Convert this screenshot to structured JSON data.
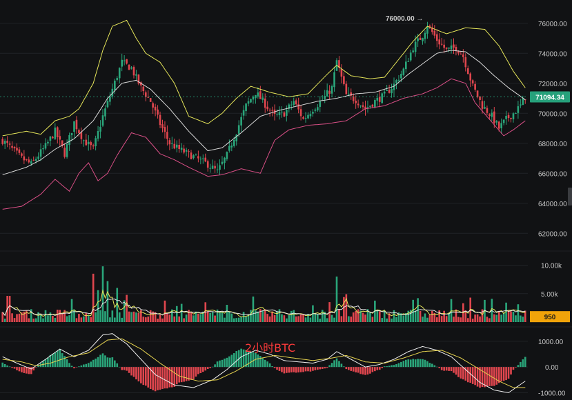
{
  "colors": {
    "up": "#2aa57a",
    "down": "#e0464e",
    "bb_upper": "#e6e65a",
    "bb_mid": "#d8d8d8",
    "bb_lower": "#d94f86",
    "vol_ma1": "#e6e65a",
    "vol_ma2": "#e7e7e7",
    "macd_dif": "#f0f0f0",
    "macd_dea": "#e6d34f",
    "price_badge": "#26a17b",
    "volume_badge": "#f0a30a"
  },
  "watermark": "2小时BTC",
  "chart_data": [
    {
      "type": "candlestick",
      "panel": "price",
      "ylim": [
        61000,
        77000
      ],
      "y_ticks": [
        62000,
        64000,
        66000,
        68000,
        70000,
        72000,
        74000,
        76000
      ],
      "y_tick_labels": [
        "62000.00",
        "64000.00",
        "66000.00",
        "68000.00",
        "70000.00",
        "72000.00",
        "74000.00",
        "76000.00"
      ],
      "current_price": 71094.34,
      "current_price_label": "71094.34",
      "high_marker": 76000,
      "high_marker_label": "76000.00 →",
      "price_path": [
        [
          0,
          68200
        ],
        [
          8,
          67000
        ],
        [
          12,
          66600
        ],
        [
          18,
          67800
        ],
        [
          22,
          68800
        ],
        [
          26,
          67300
        ],
        [
          30,
          69400
        ],
        [
          34,
          68200
        ],
        [
          38,
          67600
        ],
        [
          42,
          69800
        ],
        [
          46,
          71600
        ],
        [
          50,
          73400
        ],
        [
          54,
          73000
        ],
        [
          58,
          71700
        ],
        [
          62,
          70800
        ],
        [
          66,
          69300
        ],
        [
          70,
          68000
        ],
        [
          74,
          67600
        ],
        [
          80,
          67100
        ],
        [
          86,
          66600
        ],
        [
          90,
          66100
        ],
        [
          94,
          67200
        ],
        [
          98,
          68800
        ],
        [
          102,
          70500
        ],
        [
          106,
          71400
        ],
        [
          110,
          70600
        ],
        [
          114,
          69800
        ],
        [
          118,
          70000
        ],
        [
          122,
          70800
        ],
        [
          126,
          69600
        ],
        [
          130,
          70300
        ],
        [
          134,
          70900
        ],
        [
          138,
          71700
        ],
        [
          140,
          73500
        ],
        [
          144,
          71200
        ],
        [
          148,
          70900
        ],
        [
          152,
          70300
        ],
        [
          156,
          70800
        ],
        [
          160,
          71200
        ],
        [
          164,
          71900
        ],
        [
          168,
          72900
        ],
        [
          172,
          74400
        ],
        [
          176,
          75200
        ],
        [
          178,
          75900
        ],
        [
          182,
          74900
        ],
        [
          186,
          74200
        ],
        [
          190,
          74400
        ],
        [
          193,
          73800
        ],
        [
          197,
          71800
        ],
        [
          201,
          70500
        ],
        [
          205,
          69800
        ],
        [
          208,
          69000
        ],
        [
          211,
          69600
        ],
        [
          214,
          70000
        ],
        [
          217,
          70500
        ],
        [
          219,
          71094
        ]
      ],
      "bb_upper": [
        [
          0,
          68500
        ],
        [
          10,
          68800
        ],
        [
          16,
          68600
        ],
        [
          22,
          69500
        ],
        [
          28,
          69800
        ],
        [
          32,
          70300
        ],
        [
          38,
          72000
        ],
        [
          42,
          74200
        ],
        [
          46,
          75800
        ],
        [
          52,
          76200
        ],
        [
          56,
          75000
        ],
        [
          60,
          74000
        ],
        [
          66,
          73400
        ],
        [
          72,
          72000
        ],
        [
          78,
          69800
        ],
        [
          86,
          69300
        ],
        [
          92,
          70000
        ],
        [
          98,
          71000
        ],
        [
          104,
          71800
        ],
        [
          112,
          71400
        ],
        [
          120,
          71100
        ],
        [
          128,
          71300
        ],
        [
          136,
          72600
        ],
        [
          140,
          73200
        ],
        [
          146,
          72500
        ],
        [
          154,
          72300
        ],
        [
          160,
          72400
        ],
        [
          166,
          73600
        ],
        [
          172,
          74800
        ],
        [
          178,
          75800
        ],
        [
          186,
          75300
        ],
        [
          194,
          75700
        ],
        [
          202,
          75600
        ],
        [
          208,
          74500
        ],
        [
          214,
          72800
        ],
        [
          219,
          71700
        ]
      ],
      "bb_mid": [
        [
          0,
          65900
        ],
        [
          10,
          66400
        ],
        [
          16,
          66900
        ],
        [
          22,
          67600
        ],
        [
          30,
          68300
        ],
        [
          38,
          69500
        ],
        [
          44,
          71000
        ],
        [
          50,
          72000
        ],
        [
          56,
          72200
        ],
        [
          62,
          71600
        ],
        [
          70,
          70300
        ],
        [
          78,
          68800
        ],
        [
          86,
          67500
        ],
        [
          92,
          67700
        ],
        [
          100,
          68700
        ],
        [
          108,
          69800
        ],
        [
          116,
          70200
        ],
        [
          124,
          70500
        ],
        [
          132,
          70800
        ],
        [
          140,
          71000
        ],
        [
          148,
          71300
        ],
        [
          156,
          71400
        ],
        [
          164,
          71800
        ],
        [
          170,
          72600
        ],
        [
          176,
          73300
        ],
        [
          182,
          74000
        ],
        [
          188,
          74200
        ],
        [
          194,
          74100
        ],
        [
          200,
          73400
        ],
        [
          206,
          72500
        ],
        [
          212,
          71700
        ],
        [
          219,
          70900
        ]
      ],
      "bb_lower": [
        [
          0,
          63600
        ],
        [
          8,
          63800
        ],
        [
          16,
          64600
        ],
        [
          22,
          65600
        ],
        [
          28,
          64800
        ],
        [
          32,
          66000
        ],
        [
          36,
          66700
        ],
        [
          40,
          65500
        ],
        [
          44,
          66000
        ],
        [
          48,
          67200
        ],
        [
          54,
          68700
        ],
        [
          60,
          68400
        ],
        [
          66,
          67300
        ],
        [
          72,
          66900
        ],
        [
          78,
          66400
        ],
        [
          86,
          65800
        ],
        [
          92,
          65900
        ],
        [
          100,
          66300
        ],
        [
          108,
          66000
        ],
        [
          114,
          68200
        ],
        [
          120,
          68900
        ],
        [
          128,
          69200
        ],
        [
          136,
          69300
        ],
        [
          144,
          69500
        ],
        [
          152,
          70300
        ],
        [
          160,
          70500
        ],
        [
          168,
          71000
        ],
        [
          176,
          71300
        ],
        [
          182,
          71700
        ],
        [
          188,
          72300
        ],
        [
          194,
          72000
        ],
        [
          198,
          70700
        ],
        [
          204,
          69600
        ],
        [
          210,
          68500
        ],
        [
          214,
          68900
        ],
        [
          219,
          69500
        ]
      ]
    },
    {
      "type": "bar",
      "panel": "volume",
      "ylim": [
        0,
        12000
      ],
      "y_ticks": [
        5000,
        10000
      ],
      "y_tick_labels": [
        "5.00k",
        "10.00k"
      ],
      "current_volume": 950,
      "current_volume_label": "950",
      "spikes": [
        [
          38,
          8500
        ],
        [
          40,
          5600
        ],
        [
          42,
          9800
        ],
        [
          44,
          7200
        ],
        [
          48,
          6000
        ],
        [
          140,
          8000
        ],
        [
          144,
          4900
        ],
        [
          174,
          4200
        ],
        [
          196,
          4300
        ]
      ]
    },
    {
      "type": "histogram",
      "panel": "macd",
      "ylim": [
        -1150,
        1400
      ],
      "y_ticks": [
        -1000,
        0,
        1000
      ],
      "y_tick_labels": [
        "-1000.00",
        "0.00",
        "1000.00"
      ],
      "dif": [
        [
          0,
          400
        ],
        [
          6,
          150
        ],
        [
          12,
          -80
        ],
        [
          18,
          300
        ],
        [
          24,
          700
        ],
        [
          30,
          400
        ],
        [
          36,
          650
        ],
        [
          42,
          1250
        ],
        [
          46,
          1300
        ],
        [
          52,
          900
        ],
        [
          58,
          300
        ],
        [
          64,
          -300
        ],
        [
          72,
          -700
        ],
        [
          80,
          -800
        ],
        [
          88,
          -500
        ],
        [
          94,
          -100
        ],
        [
          100,
          400
        ],
        [
          106,
          650
        ],
        [
          112,
          500
        ],
        [
          118,
          250
        ],
        [
          124,
          200
        ],
        [
          130,
          150
        ],
        [
          136,
          300
        ],
        [
          140,
          600
        ],
        [
          146,
          300
        ],
        [
          152,
          0
        ],
        [
          158,
          100
        ],
        [
          164,
          300
        ],
        [
          170,
          600
        ],
        [
          176,
          800
        ],
        [
          182,
          650
        ],
        [
          188,
          400
        ],
        [
          194,
          -100
        ],
        [
          200,
          -600
        ],
        [
          206,
          -900
        ],
        [
          212,
          -1000
        ],
        [
          219,
          -550
        ]
      ],
      "dea": [
        [
          0,
          300
        ],
        [
          8,
          200
        ],
        [
          14,
          50
        ],
        [
          20,
          150
        ],
        [
          28,
          400
        ],
        [
          36,
          550
        ],
        [
          44,
          1050
        ],
        [
          50,
          1100
        ],
        [
          58,
          700
        ],
        [
          66,
          150
        ],
        [
          74,
          -350
        ],
        [
          82,
          -550
        ],
        [
          90,
          -500
        ],
        [
          98,
          -150
        ],
        [
          106,
          300
        ],
        [
          114,
          450
        ],
        [
          122,
          350
        ],
        [
          130,
          250
        ],
        [
          138,
          350
        ],
        [
          144,
          450
        ],
        [
          152,
          200
        ],
        [
          160,
          150
        ],
        [
          168,
          350
        ],
        [
          176,
          600
        ],
        [
          184,
          650
        ],
        [
          192,
          350
        ],
        [
          200,
          -100
        ],
        [
          208,
          -550
        ],
        [
          214,
          -800
        ],
        [
          219,
          -800
        ]
      ]
    }
  ]
}
